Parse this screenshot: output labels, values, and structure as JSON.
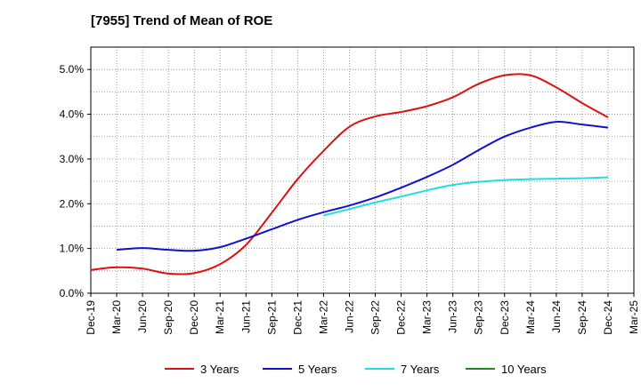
{
  "chart_data": {
    "type": "line",
    "title": "[7955]  Trend of Mean of ROE",
    "xlabel": "",
    "ylabel": "",
    "x_tick_labels": [
      "Dec-19",
      "Mar-20",
      "Jun-20",
      "Sep-20",
      "Dec-20",
      "Mar-21",
      "Jun-21",
      "Sep-21",
      "Dec-21",
      "Mar-22",
      "Jun-22",
      "Sep-22",
      "Dec-22",
      "Mar-23",
      "Jun-23",
      "Sep-23",
      "Dec-23",
      "Mar-24",
      "Jun-24",
      "Sep-24",
      "Dec-24",
      "Mar-25"
    ],
    "y_tick_labels": [
      "0.0%",
      "1.0%",
      "2.0%",
      "3.0%",
      "4.0%",
      "5.0%"
    ],
    "ylim": [
      0,
      5.5
    ],
    "grid": true,
    "legend_position": "bottom",
    "series": [
      {
        "name": "3 Years",
        "color": "#dd1111",
        "x": [
          "Dec-19",
          "Mar-20",
          "Jun-20",
          "Sep-20",
          "Dec-20",
          "Mar-21",
          "Jun-21",
          "Sep-21",
          "Dec-21",
          "Mar-22",
          "Jun-22",
          "Sep-22",
          "Dec-22",
          "Mar-23",
          "Jun-23",
          "Sep-23",
          "Dec-23",
          "Mar-24",
          "Jun-24",
          "Sep-24",
          "Dec-24"
        ],
        "values": [
          0.52,
          0.58,
          0.55,
          0.44,
          0.45,
          0.65,
          1.08,
          1.8,
          2.55,
          3.18,
          3.72,
          3.95,
          4.05,
          4.18,
          4.38,
          4.68,
          4.87,
          4.87,
          4.6,
          4.25,
          3.93
        ]
      },
      {
        "name": "5 Years",
        "color": "#1111cc",
        "x": [
          "Mar-20",
          "Jun-20",
          "Sep-20",
          "Dec-20",
          "Mar-21",
          "Jun-21",
          "Sep-21",
          "Dec-21",
          "Mar-22",
          "Jun-22",
          "Sep-22",
          "Dec-22",
          "Mar-23",
          "Jun-23",
          "Sep-23",
          "Dec-23",
          "Mar-24",
          "Jun-24",
          "Sep-24",
          "Dec-24"
        ],
        "values": [
          0.97,
          1.01,
          0.97,
          0.95,
          1.03,
          1.22,
          1.43,
          1.64,
          1.81,
          1.96,
          2.14,
          2.36,
          2.6,
          2.87,
          3.2,
          3.5,
          3.7,
          3.83,
          3.77,
          3.7
        ]
      },
      {
        "name": "7 Years",
        "color": "#22dddd",
        "x": [
          "Mar-22",
          "Jun-22",
          "Sep-22",
          "Dec-22",
          "Mar-23",
          "Jun-23",
          "Sep-23",
          "Dec-23",
          "Mar-24",
          "Jun-24",
          "Sep-24",
          "Dec-24"
        ],
        "values": [
          1.74,
          1.88,
          2.03,
          2.16,
          2.3,
          2.42,
          2.49,
          2.53,
          2.55,
          2.56,
          2.57,
          2.59
        ]
      },
      {
        "name": "10 Years",
        "color": "#228822",
        "x": [],
        "values": []
      }
    ]
  }
}
